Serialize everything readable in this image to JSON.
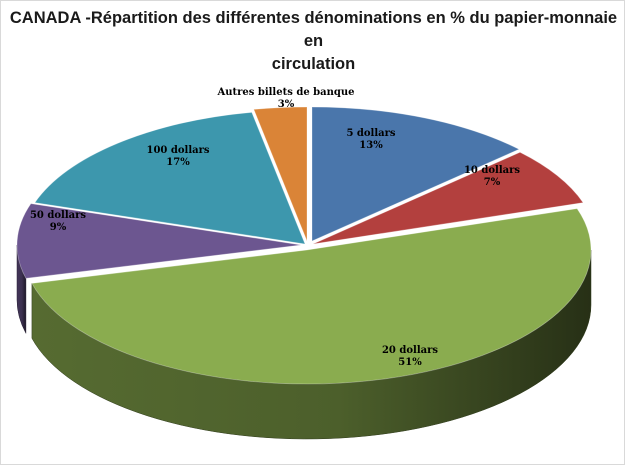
{
  "chart_data": {
    "type": "pie",
    "title": "CANADA -Répartition des différentes dénominations en % du papier-monnaie en circulation",
    "title_lines": [
      "CANADA -Répartition des différentes dénominations en % du papier-monnaie en",
      "circulation"
    ],
    "style": "3d-exploded",
    "start_angle_deg": 0,
    "direction": "clockwise",
    "slices": [
      {
        "label": "5 dollars",
        "value": 13,
        "display": "13%",
        "color": "#4a76ab"
      },
      {
        "label": "10 dollars",
        "value": 7,
        "display": "7%",
        "color": "#b3403e"
      },
      {
        "label": "20 dollars",
        "value": 51,
        "display": "51%",
        "color": "#8aac4f"
      },
      {
        "label": "50 dollars",
        "value": 9,
        "display": "9%",
        "color": "#6c5690"
      },
      {
        "label": "100 dollars",
        "value": 17,
        "display": "17%",
        "color": "#3d97ad"
      },
      {
        "label": "Autres billets de banque",
        "value": 3,
        "display": "3%",
        "color": "#da8437"
      }
    ]
  }
}
